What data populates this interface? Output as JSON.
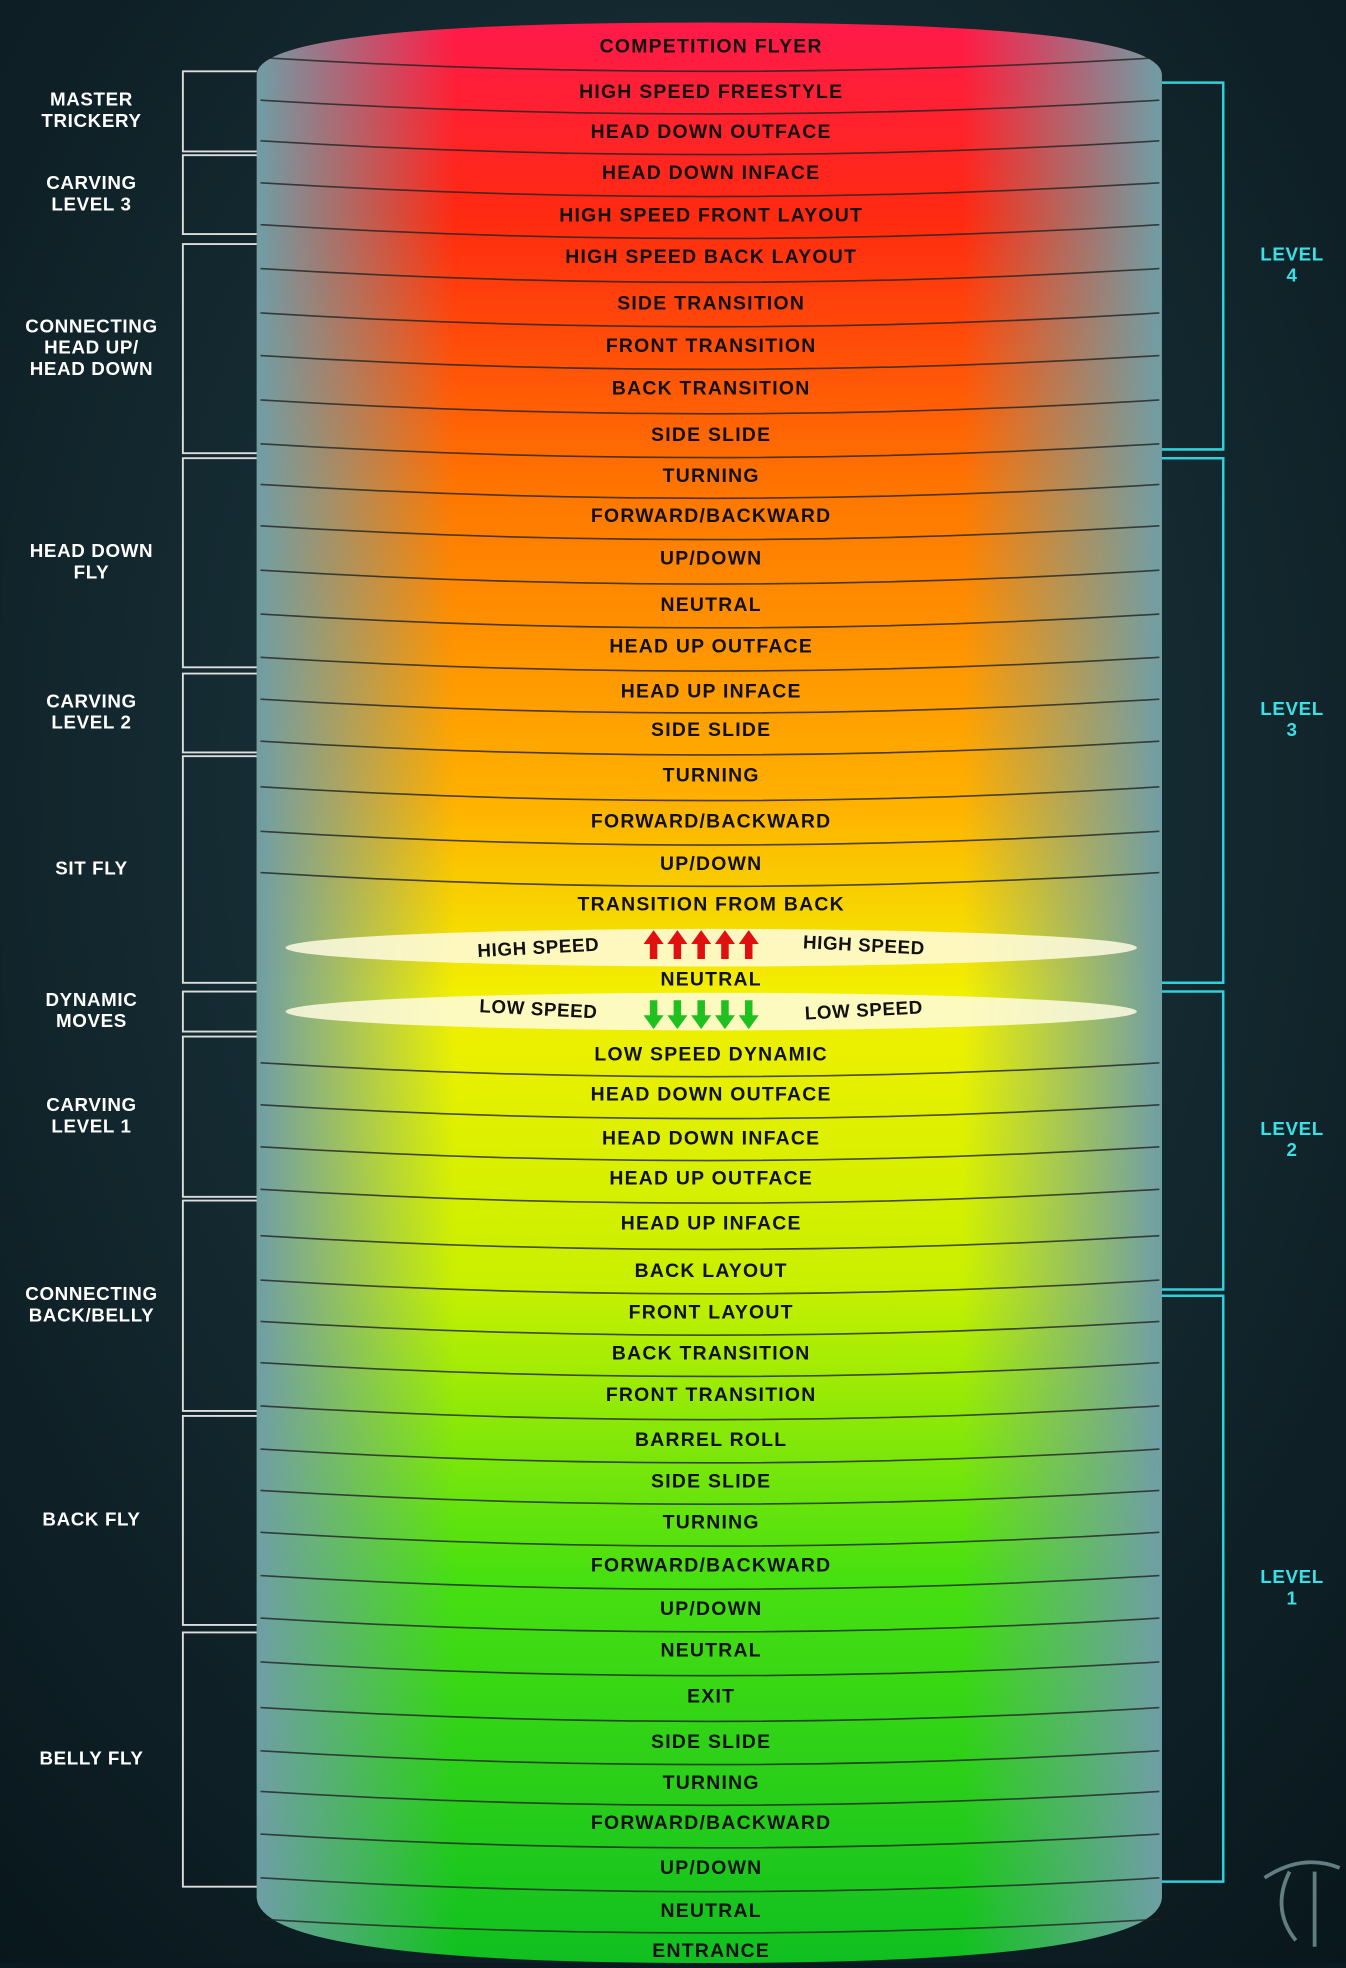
{
  "rows": [
    "COMPETITION FLYER",
    "HIGH SPEED FREESTYLE",
    "HEAD DOWN OUTFACE",
    "HEAD DOWN INFACE",
    "HIGH SPEED FRONT LAYOUT",
    "HIGH SPEED BACK LAYOUT",
    "SIDE TRANSITION",
    "FRONT TRANSITION",
    "BACK TRANSITION",
    "SIDE SLIDE",
    "TURNING",
    "FORWARD/BACKWARD",
    "UP/DOWN",
    "NEUTRAL",
    "HEAD UP OUTFACE",
    "HEAD UP INFACE",
    "SIDE SLIDE",
    "TURNING",
    "FORWARD/BACKWARD",
    "UP/DOWN",
    "TRANSITION FROM BACK",
    "NEUTRAL",
    "LOW SPEED DYNAMIC",
    "HEAD DOWN OUTFACE",
    "HEAD DOWN INFACE",
    "HEAD UP OUTFACE",
    "HEAD UP INFACE",
    "BACK LAYOUT",
    "FRONT LAYOUT",
    "BACK TRANSITION",
    "FRONT TRANSITION",
    "BARREL ROLL",
    "SIDE SLIDE",
    "TURNING",
    "FORWARD/BACKWARD",
    "UP/DOWN",
    "NEUTRAL",
    "EXIT",
    "SIDE SLIDE",
    "TURNING",
    "FORWARD/BACKWARD",
    "UP/DOWN",
    "NEUTRAL",
    "ENTRANCE"
  ],
  "speed_bands": {
    "high": {
      "left": "HIGH SPEED",
      "right": "HIGH SPEED"
    },
    "low": {
      "left": "LOW SPEED",
      "right": "LOW SPEED"
    }
  },
  "groups": [
    {
      "label": [
        "MASTER",
        "TRICKERY"
      ]
    },
    {
      "label": [
        "CARVING",
        "LEVEL 3"
      ]
    },
    {
      "label": [
        "CONNECTING",
        "HEAD UP/",
        "HEAD DOWN"
      ]
    },
    {
      "label": [
        "HEAD DOWN",
        "FLY"
      ]
    },
    {
      "label": [
        "CARVING",
        "LEVEL 2"
      ]
    },
    {
      "label": [
        "SIT FLY"
      ]
    },
    {
      "label": [
        "DYNAMIC",
        "MOVES"
      ]
    },
    {
      "label": [
        "CARVING",
        "LEVEL 1"
      ]
    },
    {
      "label": [
        "CONNECTING",
        "BACK/BELLY"
      ]
    },
    {
      "label": [
        "BACK FLY"
      ]
    },
    {
      "label": [
        "BELLY FLY"
      ]
    }
  ],
  "levels": [
    {
      "label": [
        "LEVEL",
        "4"
      ]
    },
    {
      "label": [
        "LEVEL",
        "3"
      ]
    },
    {
      "label": [
        "LEVEL",
        "2"
      ]
    },
    {
      "label": [
        "LEVEL",
        "1"
      ]
    }
  ]
}
